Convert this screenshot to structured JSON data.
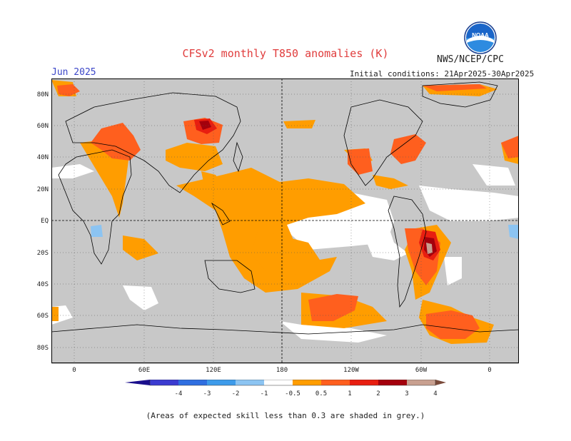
{
  "title": "CFSv2 monthly T850 anomalies (K)",
  "month": "Jun 2025",
  "agency": "NWS/NCEP/CPC",
  "initial_conditions": "Initial conditions: 21Apr2025-30Apr2025",
  "footnote": "(Areas of expected skill less than 0.3 are shaded in grey.)",
  "logo_text": "NOAA",
  "lat_labels": [
    "80N",
    "60N",
    "40N",
    "20N",
    "EQ",
    "20S",
    "40S",
    "60S",
    "80S"
  ],
  "lon_labels": [
    "0",
    "60E",
    "120E",
    "180",
    "120W",
    "60W",
    "0"
  ],
  "legend": {
    "labels": [
      "-4",
      "-3",
      "-2",
      "-1",
      "-0.5",
      "0.5",
      "1",
      "2",
      "3",
      "4"
    ],
    "colors": {
      "m4": "#1a0f8c",
      "m3": "#3b3bd0",
      "m2": "#2f6ee0",
      "m1": "#3d9bea",
      "m05": "#8cc4f2",
      "neutral": "#ffffff",
      "p05": "#ff9d00",
      "p1": "#ff5f1e",
      "p2": "#e81e10",
      "p3": "#a4000c",
      "p4": "#c8a090",
      "p5": "#7a4a3a"
    }
  },
  "colors": {
    "skill_grey": "#c8c8c8",
    "ocean_white": "#ffffff",
    "coast": "#000000"
  }
}
